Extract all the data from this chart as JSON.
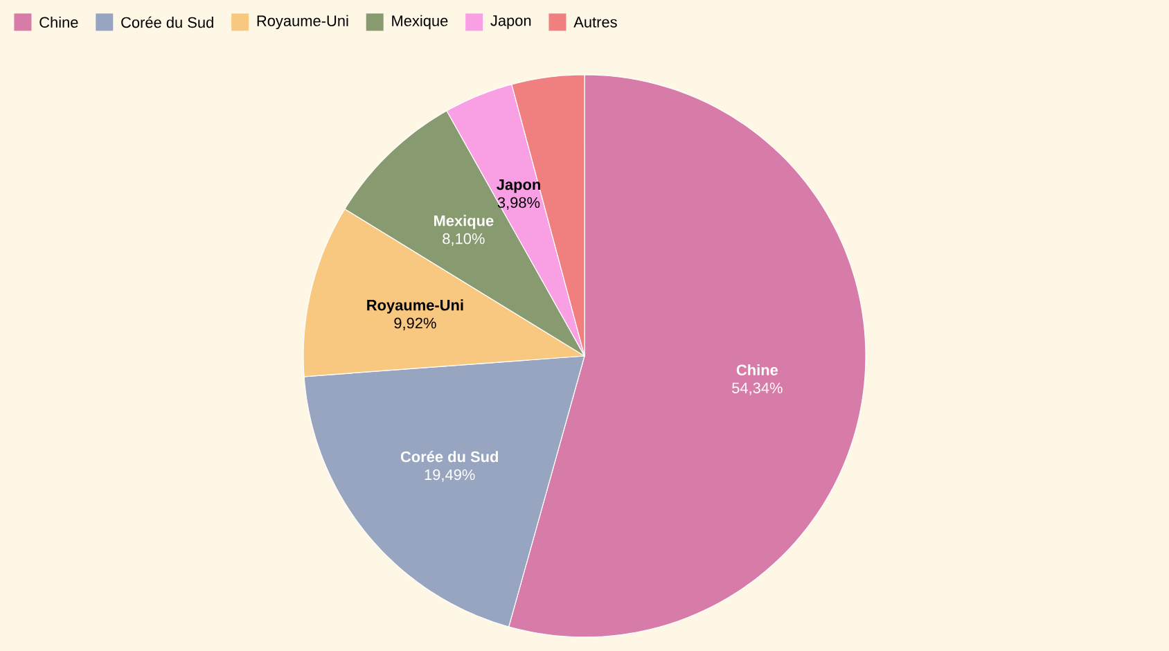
{
  "chart_data": {
    "type": "pie",
    "categories": [
      "Chine",
      "Corée du Sud",
      "Royaume-Uni",
      "Mexique",
      "Japon",
      "Autres"
    ],
    "values": [
      54.34,
      19.49,
      9.92,
      8.1,
      3.98,
      4.17
    ],
    "colors": [
      "#d77ca9",
      "#97a5c0",
      "#f9c880",
      "#889a70",
      "#f9a0e5",
      "#f08080"
    ],
    "value_labels": [
      "54,34%",
      "19,49%",
      "9,92%",
      "8,10%",
      "3,98%",
      null
    ],
    "legend": "top left"
  }
}
